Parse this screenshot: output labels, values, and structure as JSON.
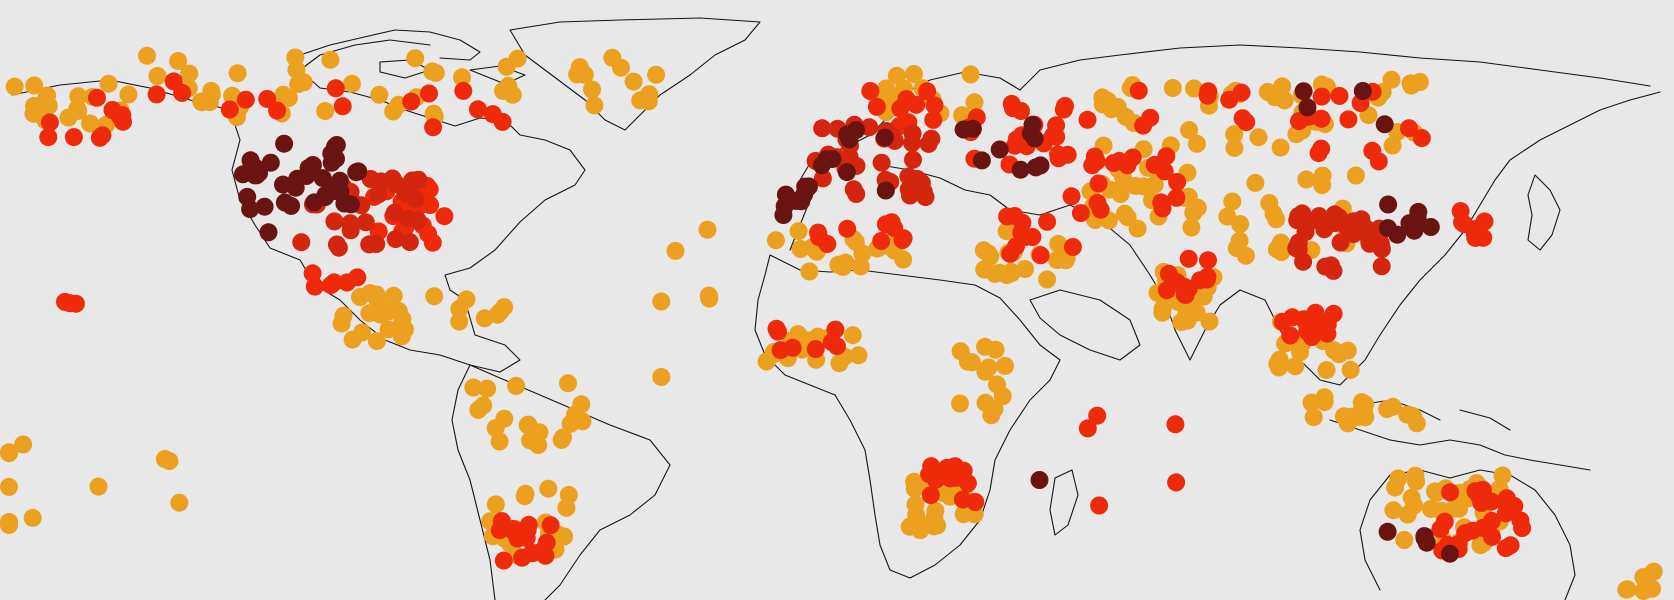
{
  "map": {
    "background": "#e8e8e8",
    "coastline_color": "#151515",
    "legend": "none",
    "levels": {
      "low": "#eba020",
      "medium": "#ee2a0a",
      "high": "#d4260f",
      "extreme": "#6a1412"
    },
    "clusters": [
      {
        "region": "north-america-interior",
        "level": "extreme",
        "lon": -104,
        "lat": 47,
        "spread_lon": 9,
        "spread_lat": 7,
        "count": 26
      },
      {
        "region": "north-america-central",
        "level": "high",
        "lon": -95,
        "lat": 39,
        "spread_lon": 13,
        "spread_lat": 8,
        "count": 30
      },
      {
        "region": "north-america-east",
        "level": "medium",
        "lon": -83,
        "lat": 38,
        "spread_lon": 9,
        "spread_lat": 7,
        "count": 22
      },
      {
        "region": "north-america-west",
        "level": "extreme",
        "lon": -115,
        "lat": 42,
        "spread_lon": 5,
        "spread_lat": 9,
        "count": 12
      },
      {
        "region": "canada-north",
        "level": "low",
        "lon": -100,
        "lat": 66,
        "spread_lon": 40,
        "spread_lat": 7,
        "count": 40
      },
      {
        "region": "canada-north",
        "level": "medium",
        "lon": -100,
        "lat": 63,
        "spread_lon": 38,
        "spread_lat": 6,
        "count": 16
      },
      {
        "region": "alaska",
        "level": "low",
        "lon": -155,
        "lat": 62,
        "spread_lon": 12,
        "spread_lat": 5,
        "count": 18
      },
      {
        "region": "alaska",
        "level": "medium",
        "lon": -152,
        "lat": 60,
        "spread_lon": 10,
        "spread_lat": 5,
        "count": 10
      },
      {
        "region": "greenland",
        "level": "low",
        "lon": -42,
        "lat": 68,
        "spread_lon": 10,
        "spread_lat": 6,
        "count": 12
      },
      {
        "region": "central-america",
        "level": "low",
        "lon": -92,
        "lat": 16,
        "spread_lon": 8,
        "spread_lat": 6,
        "count": 18
      },
      {
        "region": "central-america",
        "level": "medium",
        "lon": -100,
        "lat": 22,
        "spread_lon": 5,
        "spread_lat": 4,
        "count": 6
      },
      {
        "region": "caribbean",
        "level": "low",
        "lon": -72,
        "lat": 18,
        "spread_lon": 8,
        "spread_lat": 3,
        "count": 8
      },
      {
        "region": "south-america-north",
        "level": "low",
        "lon": -60,
        "lat": -5,
        "spread_lon": 12,
        "spread_lat": 8,
        "count": 20
      },
      {
        "region": "south-america-south",
        "level": "low",
        "lon": -60,
        "lat": -28,
        "spread_lon": 9,
        "spread_lat": 8,
        "count": 20
      },
      {
        "region": "south-america-south",
        "level": "medium",
        "lon": -60,
        "lat": -32,
        "spread_lon": 6,
        "spread_lat": 5,
        "count": 16
      },
      {
        "region": "pacific-islands",
        "level": "low",
        "lon": -155,
        "lat": -20,
        "spread_lon": 25,
        "spread_lat": 10,
        "count": 12
      },
      {
        "region": "hawaii",
        "level": "medium",
        "lon": -156,
        "lat": 20,
        "spread_lon": 2,
        "spread_lat": 1,
        "count": 3
      },
      {
        "region": "europe",
        "level": "high",
        "lon": 12,
        "lat": 50,
        "spread_lon": 14,
        "spread_lat": 8,
        "count": 34
      },
      {
        "region": "europe",
        "level": "extreme",
        "lon": 8,
        "lat": 50,
        "spread_lon": 10,
        "spread_lat": 7,
        "count": 12
      },
      {
        "region": "iberia",
        "level": "extreme",
        "lon": -4,
        "lat": 40,
        "spread_lon": 3,
        "spread_lat": 3,
        "count": 6
      },
      {
        "region": "scandinavia",
        "level": "low",
        "lon": 22,
        "lat": 64,
        "spread_lon": 12,
        "spread_lat": 5,
        "count": 16
      },
      {
        "region": "scandinavia",
        "level": "medium",
        "lon": 18,
        "lat": 62,
        "spread_lon": 8,
        "spread_lat": 5,
        "count": 10
      },
      {
        "region": "russia-west",
        "level": "medium",
        "lon": 45,
        "lat": 56,
        "spread_lon": 14,
        "spread_lat": 7,
        "count": 24
      },
      {
        "region": "russia-west",
        "level": "extreme",
        "lon": 40,
        "lat": 52,
        "spread_lon": 10,
        "spread_lat": 6,
        "count": 10
      },
      {
        "region": "siberia",
        "level": "low",
        "lon": 95,
        "lat": 60,
        "spread_lon": 35,
        "spread_lat": 8,
        "count": 50
      },
      {
        "region": "siberia",
        "level": "medium",
        "lon": 100,
        "lat": 58,
        "spread_lon": 32,
        "spread_lat": 8,
        "count": 24
      },
      {
        "region": "siberia",
        "level": "extreme",
        "lon": 110,
        "lat": 62,
        "spread_lon": 18,
        "spread_lat": 4,
        "count": 4
      },
      {
        "region": "central-asia",
        "level": "low",
        "lon": 68,
        "lat": 42,
        "spread_lon": 14,
        "spread_lat": 7,
        "count": 26
      },
      {
        "region": "central-asia",
        "level": "medium",
        "lon": 65,
        "lat": 45,
        "spread_lon": 12,
        "spread_lat": 6,
        "count": 16
      },
      {
        "region": "middle-east",
        "level": "low",
        "lon": 45,
        "lat": 30,
        "spread_lon": 10,
        "spread_lat": 6,
        "count": 20
      },
      {
        "region": "middle-east",
        "level": "medium",
        "lon": 48,
        "lat": 34,
        "spread_lon": 8,
        "spread_lat": 5,
        "count": 12
      },
      {
        "region": "north-africa",
        "level": "low",
        "lon": 5,
        "lat": 30,
        "spread_lon": 14,
        "spread_lat": 5,
        "count": 18
      },
      {
        "region": "north-africa",
        "level": "medium",
        "lon": 10,
        "lat": 34,
        "spread_lon": 10,
        "spread_lat": 3,
        "count": 10
      },
      {
        "region": "west-africa",
        "level": "low",
        "lon": 0,
        "lat": 10,
        "spread_lon": 10,
        "spread_lat": 4,
        "count": 16
      },
      {
        "region": "west-africa",
        "level": "medium",
        "lon": -2,
        "lat": 11,
        "spread_lon": 8,
        "spread_lat": 3,
        "count": 8
      },
      {
        "region": "east-africa",
        "level": "low",
        "lon": 36,
        "lat": 2,
        "spread_lon": 6,
        "spread_lat": 8,
        "count": 14
      },
      {
        "region": "southern-africa",
        "level": "low",
        "lon": 27,
        "lat": -24,
        "spread_lon": 7,
        "spread_lat": 6,
        "count": 22
      },
      {
        "region": "southern-africa",
        "level": "medium",
        "lon": 29,
        "lat": -20,
        "spread_lon": 5,
        "spread_lat": 5,
        "count": 12
      },
      {
        "region": "india",
        "level": "low",
        "lon": 78,
        "lat": 21,
        "spread_lon": 6,
        "spread_lat": 6,
        "count": 24
      },
      {
        "region": "india",
        "level": "medium",
        "lon": 78,
        "lat": 24,
        "spread_lon": 5,
        "spread_lat": 5,
        "count": 12
      },
      {
        "region": "china",
        "level": "high",
        "lon": 110,
        "lat": 32,
        "spread_lon": 9,
        "spread_lat": 7,
        "count": 32
      },
      {
        "region": "china",
        "level": "low",
        "lon": 100,
        "lat": 38,
        "spread_lon": 14,
        "spread_lat": 9,
        "count": 22
      },
      {
        "region": "east-asia",
        "level": "extreme",
        "lon": 125,
        "lat": 38,
        "spread_lon": 5,
        "spread_lat": 4,
        "count": 8
      },
      {
        "region": "japan",
        "level": "medium",
        "lon": 138,
        "lat": 37,
        "spread_lon": 3,
        "spread_lat": 4,
        "count": 8
      },
      {
        "region": "southeast-asia",
        "level": "low",
        "lon": 105,
        "lat": 10,
        "spread_lon": 8,
        "spread_lat": 6,
        "count": 20
      },
      {
        "region": "southeast-asia",
        "level": "medium",
        "lon": 104,
        "lat": 14,
        "spread_lon": 6,
        "spread_lat": 5,
        "count": 12
      },
      {
        "region": "indonesia",
        "level": "low",
        "lon": 115,
        "lat": -4,
        "spread_lon": 12,
        "spread_lat": 3,
        "count": 18
      },
      {
        "region": "australia",
        "level": "low",
        "lon": 133,
        "lat": -26,
        "spread_lon": 12,
        "spread_lat": 8,
        "count": 34
      },
      {
        "region": "australia",
        "level": "medium",
        "lon": 140,
        "lat": -28,
        "spread_lon": 9,
        "spread_lat": 7,
        "count": 26
      },
      {
        "region": "australia",
        "level": "extreme",
        "lon": 130,
        "lat": -32,
        "spread_lon": 10,
        "spread_lat": 3,
        "count": 5
      },
      {
        "region": "new-zealand",
        "level": "low",
        "lon": 173,
        "lat": -40,
        "spread_lon": 3,
        "spread_lat": 4,
        "count": 6
      },
      {
        "region": "indian-ocean",
        "level": "medium",
        "lon": 65,
        "lat": -15,
        "spread_lon": 20,
        "spread_lat": 10,
        "count": 5
      },
      {
        "region": "atlantic-islands",
        "level": "low",
        "lon": -25,
        "lat": 20,
        "spread_lon": 10,
        "spread_lat": 20,
        "count": 6
      },
      {
        "region": "madagascar",
        "level": "extreme",
        "lon": 47,
        "lat": -19,
        "spread_lon": 1,
        "spread_lat": 1,
        "count": 1
      }
    ]
  }
}
